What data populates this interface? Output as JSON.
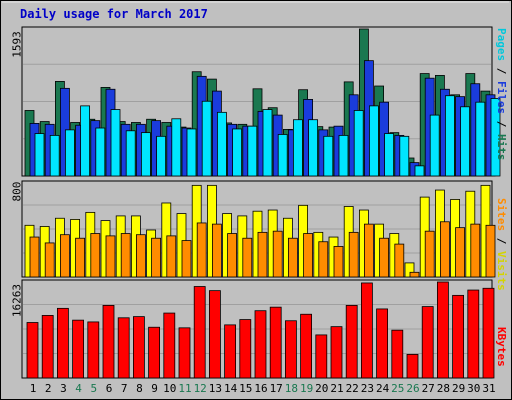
{
  "title": "Daily usage for March 2017",
  "chart_data": [
    {
      "type": "bar",
      "panel": "top",
      "categories": [
        "1",
        "2",
        "3",
        "4",
        "5",
        "6",
        "7",
        "8",
        "9",
        "10",
        "11",
        "12",
        "13",
        "14",
        "15",
        "16",
        "17",
        "18",
        "19",
        "20",
        "21",
        "22",
        "23",
        "24",
        "25",
        "26",
        "27",
        "28",
        "29",
        "30",
        "31"
      ],
      "ymax_label": "1593",
      "ylim": [
        0,
        1593
      ],
      "series": [
        {
          "name": "Hits",
          "color": "#1a7850",
          "values": [
            710,
            590,
            1025,
            580,
            615,
            960,
            590,
            580,
            615,
            580,
            530,
            1130,
            1050,
            575,
            560,
            945,
            740,
            505,
            935,
            535,
            530,
            1020,
            1593,
            975,
            470,
            195,
            1110,
            1090,
            880,
            1110,
            920
          ]
        },
        {
          "name": "Files",
          "color": "#1a3cdc",
          "values": [
            570,
            560,
            950,
            550,
            600,
            940,
            560,
            560,
            600,
            540,
            520,
            1080,
            920,
            560,
            540,
            700,
            660,
            500,
            830,
            500,
            540,
            880,
            1250,
            800,
            440,
            145,
            1060,
            940,
            860,
            1000,
            880
          ]
        },
        {
          "name": "Pages",
          "color": "#00e6ff",
          "values": [
            460,
            440,
            500,
            760,
            520,
            720,
            490,
            470,
            430,
            620,
            510,
            810,
            690,
            510,
            540,
            720,
            450,
            610,
            610,
            430,
            440,
            710,
            760,
            460,
            430,
            110,
            660,
            870,
            750,
            800,
            840
          ]
        }
      ]
    },
    {
      "type": "bar",
      "panel": "middle",
      "categories": [
        "1",
        "2",
        "3",
        "4",
        "5",
        "6",
        "7",
        "8",
        "9",
        "10",
        "11",
        "12",
        "13",
        "14",
        "15",
        "16",
        "17",
        "18",
        "19",
        "20",
        "21",
        "22",
        "23",
        "24",
        "25",
        "26",
        "27",
        "28",
        "29",
        "30",
        "31"
      ],
      "ymax_label": "800",
      "ylim": [
        0,
        800
      ],
      "series": [
        {
          "name": "Visits",
          "color": "#ffff00",
          "values": [
            440,
            430,
            500,
            490,
            550,
            480,
            520,
            520,
            400,
            630,
            540,
            780,
            780,
            540,
            520,
            560,
            570,
            500,
            610,
            380,
            340,
            600,
            570,
            450,
            370,
            120,
            680,
            740,
            660,
            730,
            780
          ]
        },
        {
          "name": "Sites",
          "color": "#ff8c00",
          "values": [
            340,
            290,
            360,
            330,
            370,
            350,
            370,
            360,
            330,
            350,
            310,
            460,
            450,
            370,
            330,
            380,
            390,
            330,
            370,
            300,
            260,
            380,
            450,
            330,
            280,
            40,
            390,
            470,
            420,
            450,
            440
          ]
        }
      ]
    },
    {
      "type": "bar",
      "panel": "bottom",
      "categories": [
        "1",
        "2",
        "3",
        "4",
        "5",
        "6",
        "7",
        "8",
        "9",
        "10",
        "11",
        "12",
        "13",
        "14",
        "15",
        "16",
        "17",
        "18",
        "19",
        "20",
        "21",
        "22",
        "23",
        "24",
        "25",
        "26",
        "27",
        "28",
        "29",
        "30",
        "31"
      ],
      "ymax_label": "16263",
      "ylim": [
        0,
        16263
      ],
      "series": [
        {
          "name": "KBytes",
          "color": "#ff0000",
          "values": [
            9400,
            10600,
            11800,
            9800,
            9500,
            12300,
            10200,
            10400,
            8600,
            11000,
            8500,
            15500,
            14800,
            9000,
            9900,
            11400,
            12000,
            9700,
            10800,
            7300,
            8700,
            12300,
            16100,
            11700,
            8100,
            4000,
            12100,
            16263,
            14000,
            14900,
            15200
          ]
        }
      ]
    }
  ],
  "days": [
    {
      "label": "1",
      "weekend": false
    },
    {
      "label": "2",
      "weekend": false
    },
    {
      "label": "3",
      "weekend": false
    },
    {
      "label": "4",
      "weekend": true
    },
    {
      "label": "5",
      "weekend": true
    },
    {
      "label": "6",
      "weekend": false
    },
    {
      "label": "7",
      "weekend": false
    },
    {
      "label": "8",
      "weekend": false
    },
    {
      "label": "9",
      "weekend": false
    },
    {
      "label": "10",
      "weekend": false
    },
    {
      "label": "11",
      "weekend": true
    },
    {
      "label": "12",
      "weekend": true
    },
    {
      "label": "13",
      "weekend": false
    },
    {
      "label": "14",
      "weekend": false
    },
    {
      "label": "15",
      "weekend": false
    },
    {
      "label": "16",
      "weekend": false
    },
    {
      "label": "17",
      "weekend": false
    },
    {
      "label": "18",
      "weekend": true
    },
    {
      "label": "19",
      "weekend": true
    },
    {
      "label": "20",
      "weekend": false
    },
    {
      "label": "21",
      "weekend": false
    },
    {
      "label": "22",
      "weekend": false
    },
    {
      "label": "23",
      "weekend": false
    },
    {
      "label": "24",
      "weekend": false
    },
    {
      "label": "25",
      "weekend": true
    },
    {
      "label": "26",
      "weekend": true
    },
    {
      "label": "27",
      "weekend": false
    },
    {
      "label": "28",
      "weekend": false
    },
    {
      "label": "29",
      "weekend": false
    },
    {
      "label": "30",
      "weekend": false
    },
    {
      "label": "31",
      "weekend": false
    }
  ],
  "right_labels": {
    "top": [
      {
        "text": "Pages",
        "color": "#00c8dc"
      },
      {
        "text": " / ",
        "color": "#000000"
      },
      {
        "text": "Files",
        "color": "#1a3cdc"
      },
      {
        "text": " / ",
        "color": "#000000"
      },
      {
        "text": "Hits",
        "color": "#1a7850"
      }
    ],
    "middle": [
      {
        "text": "Sites",
        "color": "#ff8c00"
      },
      {
        "text": " / ",
        "color": "#000000"
      },
      {
        "text": "Visits",
        "color": "#d4d400"
      }
    ],
    "bottom": [
      {
        "text": "KBytes",
        "color": "#ff0000"
      }
    ]
  },
  "colors": {
    "panel_bg": "#c0c0c0",
    "grid": "#a0a0a0",
    "weekday_label": "#000000",
    "weekend_label": "#1a7850"
  }
}
